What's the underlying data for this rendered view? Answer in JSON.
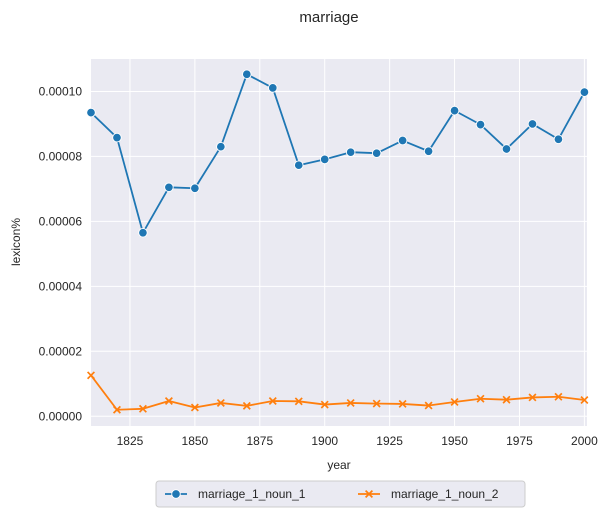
{
  "chart_data": {
    "type": "line",
    "title": "marriage",
    "xlabel": "year",
    "ylabel": "lexicon%",
    "xlim": [
      1810,
      2001
    ],
    "ylim": [
      -3e-06,
      0.00011
    ],
    "xticks": [
      1825,
      1850,
      1875,
      1900,
      1925,
      1950,
      1975,
      2000
    ],
    "yticks": [
      0.0,
      2e-05,
      4e-05,
      6e-05,
      8e-05,
      0.0001
    ],
    "ytick_labels": [
      "0.00000",
      "0.00002",
      "0.00004",
      "0.00006",
      "0.00008",
      "0.00010"
    ],
    "grid": true,
    "legend_position": "bottom-center-outside",
    "x": [
      1810,
      1820,
      1830,
      1840,
      1850,
      1860,
      1870,
      1880,
      1890,
      1900,
      1910,
      1920,
      1930,
      1940,
      1950,
      1960,
      1970,
      1980,
      1990,
      2000
    ],
    "series": [
      {
        "name": "marriage_1_noun_1",
        "color": "#1f77b4",
        "marker": "circle",
        "values": [
          9.35e-05,
          8.58e-05,
          5.65e-05,
          7.05e-05,
          7.02e-05,
          8.3e-05,
          0.0001053,
          0.0001011,
          7.73e-05,
          7.91e-05,
          8.13e-05,
          8.1e-05,
          8.49e-05,
          8.16e-05,
          9.41e-05,
          8.98e-05,
          8.23e-05,
          9e-05,
          8.53e-05,
          9.98e-05
        ]
      },
      {
        "name": "marriage_1_noun_2",
        "color": "#ff7f0e",
        "marker": "x",
        "values": [
          1.26e-05,
          2e-06,
          2.3e-06,
          4.7e-06,
          2.7e-06,
          4.1e-06,
          3.2e-06,
          4.7e-06,
          4.6e-06,
          3.6e-06,
          4.1e-06,
          3.9e-06,
          3.8e-06,
          3.3e-06,
          4.4e-06,
          5.4e-06,
          5.1e-06,
          5.8e-06,
          6e-06,
          5e-06
        ]
      }
    ]
  }
}
